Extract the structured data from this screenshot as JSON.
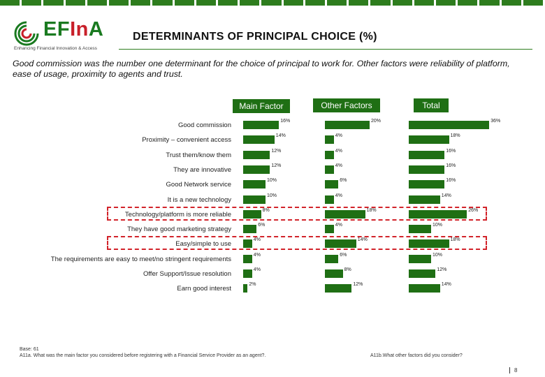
{
  "logo": {
    "name_a": "EF",
    "name_b": "In",
    "name_c": "A",
    "tagline": "Enhancing Financial Innovation & Access"
  },
  "title": "DETERMINANTS OF PRINCIPAL CHOICE (%)",
  "subtitle": "Good commission was the number one determinant for the choice of principal to work for. Other factors were reliability of platform, ease of usage, proximity to agents and trust.",
  "chart_data": {
    "type": "bar",
    "orientation": "horizontal",
    "unit": "%",
    "categories": [
      "Good commission",
      "Proximity – convenient access",
      "Trust them/know them",
      "They are innovative",
      "Good Network service",
      "It is a new technology",
      "Technology/platform is more reliable",
      "They have good marketing strategy",
      "Easy/simple to use",
      "The requirements are easy to meet/no stringent requirements",
      "Offer Support/Issue resolution",
      "Earn good interest"
    ],
    "series": [
      {
        "name": "Main Factor",
        "values": [
          16,
          14,
          12,
          12,
          10,
          10,
          8,
          6,
          4,
          4,
          4,
          2
        ]
      },
      {
        "name": "Other Factors",
        "values": [
          20,
          4,
          4,
          4,
          6,
          4,
          18,
          4,
          14,
          6,
          8,
          12
        ]
      },
      {
        "name": "Total",
        "values": [
          36,
          18,
          16,
          16,
          16,
          14,
          26,
          10,
          18,
          10,
          12,
          14
        ]
      }
    ],
    "highlighted": [
      "Technology/platform is more reliable",
      "Easy/simple to use"
    ],
    "highlight_color": "#d2232a",
    "bar_color": "#1f6f14"
  },
  "footnotes": {
    "base": "Base: 61",
    "q1": "A11a. What was the main factor you considered before registering with a Financial Service Provider as an agent?.",
    "q2": "A11b.What other factors did you consider?"
  },
  "page_number": "8"
}
